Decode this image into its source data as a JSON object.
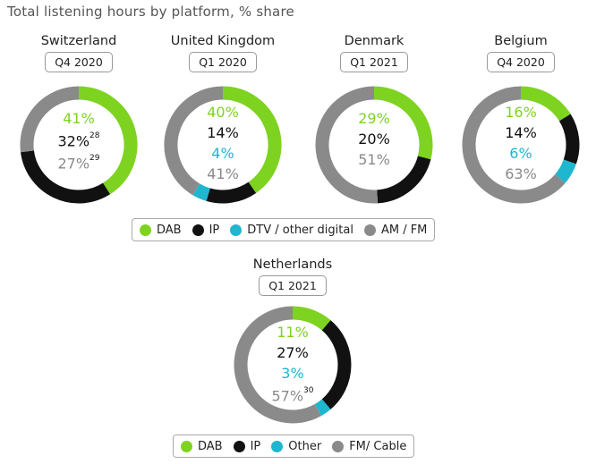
{
  "title": "Total listening hours by platform, % share",
  "colors": {
    "DAB": "#7ed321",
    "IP": "#111111",
    "DTV": "#1fb6cf",
    "AMFM": "#8a8a8a"
  },
  "chart_data": [
    {
      "type": "pie",
      "title": "Switzerland",
      "period": "Q4 2020",
      "categories": [
        "DAB",
        "IP",
        "AM / FM"
      ],
      "values": [
        41,
        32,
        27
      ],
      "labels": {
        "dab": "41%",
        "ip": "32%",
        "ip_note": "28",
        "amfm": "27%",
        "amfm_note": "29"
      }
    },
    {
      "type": "pie",
      "title": "United Kingdom",
      "period": "Q1 2020",
      "categories": [
        "DAB",
        "IP",
        "DTV / other digital",
        "AM / FM"
      ],
      "values": [
        40,
        14,
        4,
        41
      ],
      "labels": {
        "dab": "40%",
        "ip": "14%",
        "dtv": "4%",
        "amfm": "41%"
      }
    },
    {
      "type": "pie",
      "title": "Denmark",
      "period": "Q1 2021",
      "categories": [
        "DAB",
        "IP",
        "AM / FM"
      ],
      "values": [
        29,
        20,
        51
      ],
      "labels": {
        "dab": "29%",
        "ip": "20%",
        "amfm": "51%"
      }
    },
    {
      "type": "pie",
      "title": "Belgium",
      "period": "Q4 2020",
      "categories": [
        "DAB",
        "IP",
        "DTV / other digital",
        "AM / FM"
      ],
      "values": [
        16,
        14,
        6,
        63
      ],
      "labels": {
        "dab": "16%",
        "ip": "14%",
        "dtv": "6%",
        "amfm": "63%"
      }
    },
    {
      "type": "pie",
      "title": "Netherlands",
      "period": "Q1 2021",
      "categories": [
        "DAB",
        "IP",
        "Other",
        "FM/ Cable"
      ],
      "values": [
        11,
        27,
        3,
        57
      ],
      "labels": {
        "dab": "11%",
        "ip": "27%",
        "dtv": "3%",
        "amfm": "57%",
        "amfm_note": "30"
      }
    }
  ],
  "legend_top": [
    "DAB",
    "IP",
    "DTV / other digital",
    "AM / FM"
  ],
  "legend_bottom": [
    "DAB",
    "IP",
    "Other",
    "FM/ Cable"
  ]
}
